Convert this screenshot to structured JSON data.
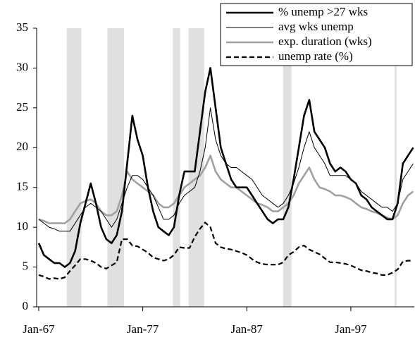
{
  "chart_data": {
    "type": "line",
    "x": [
      1967,
      1967.5,
      1968,
      1968.5,
      1969,
      1969.5,
      1970,
      1970.5,
      1971,
      1971.5,
      1972,
      1972.5,
      1973,
      1973.5,
      1974,
      1974.5,
      1975,
      1975.5,
      1976,
      1976.5,
      1977,
      1977.5,
      1978,
      1978.5,
      1979,
      1979.5,
      1980,
      1980.5,
      1981,
      1981.5,
      1982,
      1982.5,
      1983,
      1983.5,
      1984,
      1984.5,
      1985,
      1985.5,
      1986,
      1986.5,
      1987,
      1987.5,
      1988,
      1988.5,
      1989,
      1989.5,
      1990,
      1990.5,
      1991,
      1991.5,
      1992,
      1992.5,
      1993,
      1993.5,
      1994,
      1994.5,
      1995,
      1995.5,
      1996,
      1996.5,
      1997,
      1997.5,
      1998,
      1998.5,
      1999,
      1999.5,
      2000,
      2000.5,
      2001,
      2001.5,
      2002,
      2002.5,
      2003
    ],
    "series": [
      {
        "name": "% unemp >27 wks",
        "color": "#000000",
        "line_width": 2.6,
        "dashed": false,
        "values": [
          8,
          6.5,
          6,
          5.5,
          5.5,
          5,
          5.5,
          7,
          10.5,
          13,
          15.5,
          13,
          10,
          8.5,
          8,
          9,
          12,
          18,
          24,
          21,
          19,
          15,
          12,
          10,
          9.5,
          9,
          10,
          14,
          17,
          17,
          17,
          22,
          27,
          30,
          25,
          20,
          18,
          16,
          15,
          15,
          15,
          14,
          13,
          12,
          11,
          10.5,
          11,
          11,
          12.5,
          16,
          20,
          24,
          26,
          22,
          21,
          20,
          18,
          17,
          17.5,
          17,
          16,
          15.5,
          14,
          13.5,
          12.5,
          12,
          11.5,
          11,
          11,
          13,
          18,
          19,
          20
        ]
      },
      {
        "name": "avg wks unemp",
        "color": "#000000",
        "line_width": 1,
        "dashed": false,
        "values": [
          11,
          10.5,
          10,
          9.8,
          9.5,
          9.5,
          9.5,
          10.5,
          11.5,
          12.5,
          13,
          12.5,
          12,
          11,
          10,
          11,
          13,
          15,
          16.5,
          16.5,
          16,
          15,
          14,
          12.5,
          11,
          11,
          11.5,
          13,
          14,
          14.5,
          15,
          17,
          20,
          25,
          21,
          19,
          18,
          17.5,
          17.5,
          17,
          16.5,
          16,
          15,
          14,
          13.5,
          13,
          12.5,
          13,
          14,
          15.5,
          17.5,
          20,
          22,
          20,
          19,
          18,
          16.5,
          16.5,
          16.5,
          16.5,
          16,
          15.5,
          14.5,
          14,
          13.5,
          13,
          12.5,
          12.5,
          12,
          13,
          16,
          17,
          18
        ]
      },
      {
        "name": "exp. duration (wks)",
        "color": "#a0a0a0",
        "line_width": 2.6,
        "dashed": false,
        "values": [
          11,
          10.8,
          10.5,
          10.5,
          10.5,
          10.5,
          11,
          12,
          13,
          13.3,
          13.5,
          13,
          12,
          11.5,
          11.5,
          12,
          14,
          17,
          16,
          15.5,
          15,
          14.5,
          14,
          13,
          12.5,
          12.5,
          13,
          14,
          15,
          15.5,
          16,
          16.5,
          17.5,
          19,
          17,
          16,
          15.5,
          15,
          15,
          14.5,
          14,
          13.5,
          13,
          12.8,
          12.5,
          12,
          12,
          12.5,
          13,
          14,
          15.5,
          16.5,
          17.5,
          16,
          15,
          14.8,
          14.5,
          14,
          14,
          13.8,
          13.5,
          13,
          12.5,
          12.3,
          12,
          11.8,
          11.5,
          11.2,
          11,
          11.5,
          13,
          14,
          14.5
        ]
      },
      {
        "name": "unemp rate (%)",
        "color": "#000000",
        "line_width": 2.2,
        "dashed": true,
        "values": [
          4,
          3.8,
          3.5,
          3.6,
          3.5,
          3.7,
          4.5,
          5.2,
          6,
          6,
          5.8,
          5.5,
          5,
          4.8,
          5.2,
          5.6,
          8.5,
          8.5,
          7.7,
          7.6,
          7.2,
          6.8,
          6.2,
          6,
          5.8,
          6,
          6.5,
          7.5,
          7.4,
          7.4,
          8.8,
          9.8,
          10.6,
          10,
          8,
          7.5,
          7.3,
          7.2,
          7,
          6.8,
          6.5,
          6,
          5.6,
          5.4,
          5.3,
          5.3,
          5.3,
          5.6,
          6.5,
          6.9,
          7.5,
          7.7,
          7.2,
          6.9,
          6.6,
          6.1,
          5.6,
          5.6,
          5.5,
          5.4,
          5.2,
          4.9,
          4.6,
          4.5,
          4.3,
          4.2,
          4,
          4,
          4.3,
          4.7,
          5.7,
          5.8,
          5.8
        ]
      }
    ],
    "shaded_periods": [
      [
        1969.7,
        1971.1
      ],
      [
        1973.6,
        1975.2
      ],
      [
        1979.9,
        1980.6
      ],
      [
        1981.4,
        1982.9
      ],
      [
        1990.5,
        1991.3
      ],
      [
        2001.2,
        2001.4
      ]
    ],
    "shade_color": "#e0e0e0",
    "xlim": [
      1966.8,
      2003.1
    ],
    "xticks": [
      {
        "value": 1967,
        "label": "Jan-67"
      },
      {
        "value": 1977,
        "label": "Jan-77"
      },
      {
        "value": 1987,
        "label": "Jan-87"
      },
      {
        "value": 1997,
        "label": "Jan-97"
      }
    ],
    "ylim": [
      0,
      35
    ],
    "yticks": [
      0,
      5,
      10,
      15,
      20,
      25,
      30,
      35
    ],
    "grid": false,
    "legend": "top-right"
  }
}
